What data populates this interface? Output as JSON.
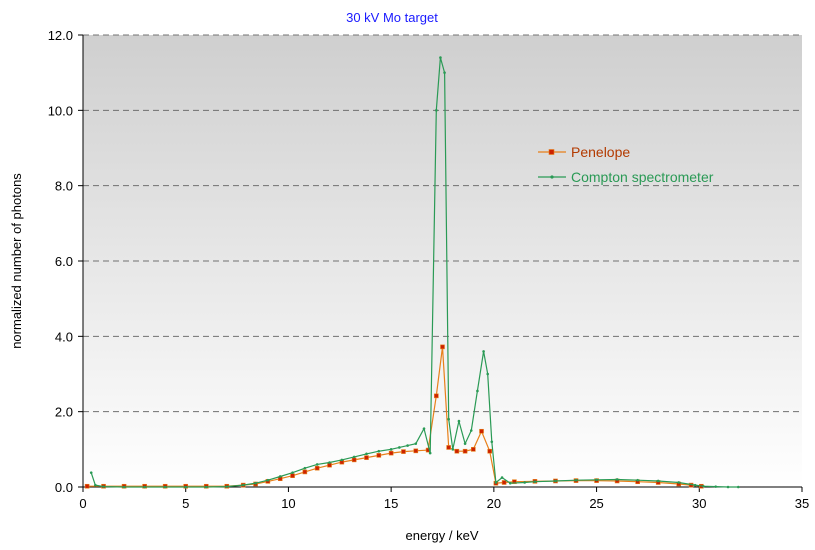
{
  "chart_data": {
    "type": "line",
    "title": "30 kV Mo target",
    "xlabel": "energy / keV",
    "ylabel": "normalized number of photons",
    "xlim": [
      0,
      35
    ],
    "ylim": [
      0,
      12
    ],
    "xticks": [
      0,
      5,
      10,
      15,
      20,
      25,
      30,
      35
    ],
    "yticks": [
      0.0,
      2.0,
      4.0,
      6.0,
      8.0,
      10.0,
      12.0
    ],
    "xtick_labels": [
      "0",
      "5",
      "10",
      "15",
      "20",
      "25",
      "30",
      "35"
    ],
    "ytick_labels": [
      "0.0",
      "2.0",
      "4.0",
      "6.0",
      "8.0",
      "10.0",
      "12.0"
    ],
    "grid": "horizontal dashed",
    "legend_position": "upper-right",
    "series": [
      {
        "name": "Penelope",
        "color": "#e8801a",
        "marker": "square",
        "marker_fill": "#cc2200",
        "x": [
          0.2,
          1,
          2,
          3,
          4,
          5,
          6,
          7,
          7.8,
          8.4,
          9,
          9.6,
          10.2,
          10.8,
          11.4,
          12,
          12.6,
          13.2,
          13.8,
          14.4,
          15,
          15.6,
          16.2,
          16.8,
          17.2,
          17.5,
          17.8,
          18.2,
          18.6,
          19,
          19.4,
          19.8,
          20.1,
          20.5,
          21,
          22,
          23,
          24,
          25,
          26,
          27,
          28,
          29,
          29.6,
          30.1
        ],
        "y": [
          0.02,
          0.02,
          0.02,
          0.02,
          0.02,
          0.02,
          0.02,
          0.02,
          0.05,
          0.08,
          0.15,
          0.22,
          0.3,
          0.4,
          0.5,
          0.58,
          0.66,
          0.72,
          0.78,
          0.84,
          0.9,
          0.94,
          0.96,
          0.98,
          2.42,
          3.72,
          1.05,
          0.95,
          0.95,
          1.0,
          1.48,
          0.95,
          0.1,
          0.12,
          0.14,
          0.15,
          0.16,
          0.17,
          0.17,
          0.16,
          0.14,
          0.12,
          0.08,
          0.05,
          0.02
        ]
      },
      {
        "name": "Compton spectrometer",
        "color": "#2a9a55",
        "marker": "dot",
        "marker_fill": "#2a9a55",
        "x": [
          0.4,
          0.6,
          1,
          2,
          3,
          4,
          5,
          6,
          7,
          7.8,
          8.4,
          9,
          9.6,
          10.2,
          10.8,
          11.4,
          12,
          12.6,
          13.2,
          13.8,
          14.4,
          15,
          15.4,
          15.8,
          16.2,
          16.6,
          16.9,
          17.2,
          17.4,
          17.6,
          17.8,
          18.0,
          18.3,
          18.6,
          18.9,
          19.2,
          19.5,
          19.7,
          19.9,
          20.1,
          20.4,
          20.8,
          21.5,
          22,
          23,
          24,
          25,
          26,
          27,
          28,
          29,
          29.8,
          30.2,
          30.8,
          31.4,
          31.9
        ],
        "y": [
          0.38,
          0.05,
          0.01,
          0.0,
          0.0,
          0.0,
          0.0,
          0.0,
          0.01,
          0.05,
          0.1,
          0.18,
          0.28,
          0.38,
          0.5,
          0.6,
          0.65,
          0.72,
          0.8,
          0.88,
          0.95,
          1.0,
          1.05,
          1.1,
          1.15,
          1.55,
          0.9,
          10.0,
          11.4,
          11.0,
          1.8,
          1.0,
          1.75,
          1.15,
          1.5,
          2.55,
          3.6,
          3.0,
          1.2,
          0.12,
          0.25,
          0.1,
          0.12,
          0.14,
          0.16,
          0.18,
          0.19,
          0.2,
          0.18,
          0.16,
          0.12,
          0.05,
          0.02,
          0.01,
          0.0,
          0.0
        ]
      }
    ]
  }
}
